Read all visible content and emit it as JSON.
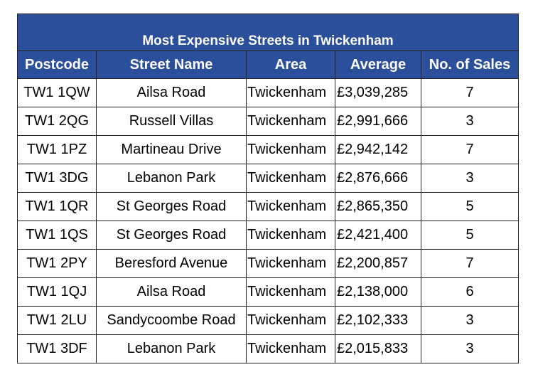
{
  "chart_data": {
    "type": "table",
    "title": "Most Expensive Streets in Twickenham",
    "columns": [
      "Postcode",
      "Street Name",
      "Area",
      "Average",
      "No. of Sales"
    ],
    "rows": [
      [
        "TW1 1QW",
        "Ailsa Road",
        "Twickenham",
        "£3,039,285",
        "7"
      ],
      [
        "TW1 2QG",
        "Russell Villas",
        "Twickenham",
        "£2,991,666",
        "3"
      ],
      [
        "TW1 1PZ",
        "Martineau Drive",
        "Twickenham",
        "£2,942,142",
        "7"
      ],
      [
        "TW1 3DG",
        "Lebanon Park",
        "Twickenham",
        "£2,876,666",
        "3"
      ],
      [
        "TW1 1QR",
        "St Georges Road",
        "Twickenham",
        "£2,865,350",
        "5"
      ],
      [
        "TW1 1QS",
        "St Georges Road",
        "Twickenham",
        "£2,421,400",
        "5"
      ],
      [
        "TW1 2PY",
        "Beresford Avenue",
        "Twickenham",
        "£2,200,857",
        "7"
      ],
      [
        "TW1 1QJ",
        "Ailsa Road",
        "Twickenham",
        "£2,138,000",
        "6"
      ],
      [
        "TW1 2LU",
        "Sandycoombe Road",
        "Twickenham",
        "£2,102,333",
        "3"
      ],
      [
        "TW1 3DF",
        "Lebanon Park",
        "Twickenham",
        "£2,015,833",
        "3"
      ]
    ]
  },
  "colors": {
    "header_background": "#2c4f9b",
    "header_text": "#ffffff",
    "border": "#222222"
  }
}
